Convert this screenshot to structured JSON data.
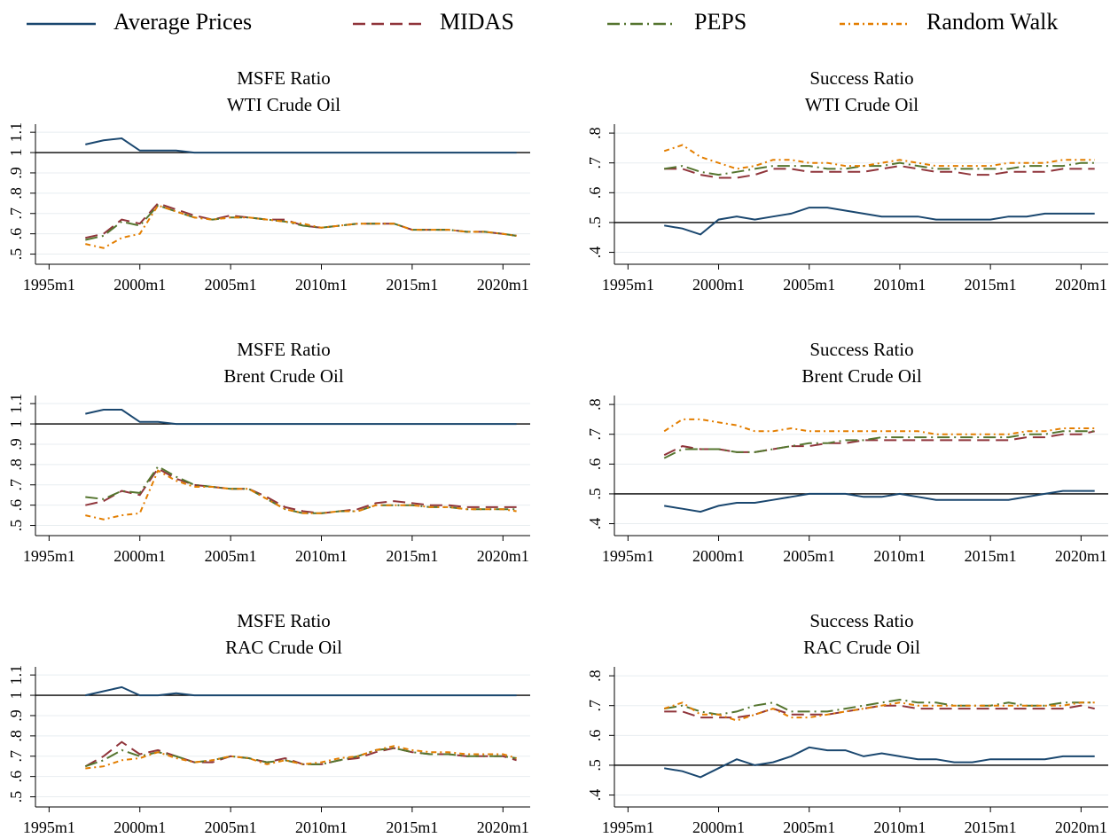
{
  "legend": [
    {
      "name": "Average Prices",
      "color": "#1a476f",
      "dash": "none"
    },
    {
      "name": "MIDAS",
      "color": "#90353b",
      "dash": "14,7"
    },
    {
      "name": "PEPS",
      "color": "#55752f",
      "dash": "14,5,2,5"
    },
    {
      "name": "Random Walk",
      "color": "#e37e00",
      "dash": "6,4,2,4"
    }
  ],
  "chart_data": [
    {
      "type": "line",
      "title": "MSFE Ratio",
      "subtitle": "WTI Crude Oil",
      "refline": 1,
      "x": [
        "1997m1",
        "1998m1",
        "1999m1",
        "2000m1",
        "2001m1",
        "2002m1",
        "2003m1",
        "2004m1",
        "2005m1",
        "2006m1",
        "2007m1",
        "2008m1",
        "2009m1",
        "2010m1",
        "2011m1",
        "2012m1",
        "2013m1",
        "2014m1",
        "2015m1",
        "2016m1",
        "2017m1",
        "2018m1",
        "2019m1",
        "2020m1",
        "2020m10"
      ],
      "xlim": [
        "1994m4",
        "2021m7"
      ],
      "xticks": [
        "1995m1",
        "2000m1",
        "2005m1",
        "2010m1",
        "2015m1",
        "2020m1"
      ],
      "ylim": [
        0.45,
        1.14
      ],
      "yticks": [
        {
          "value": 0.5,
          "label": ".5"
        },
        {
          "value": 0.6,
          "label": ".6"
        },
        {
          "value": 0.7,
          "label": ".7"
        },
        {
          "value": 0.8,
          "label": ".8"
        },
        {
          "value": 0.9,
          "label": ".9"
        },
        1,
        1.1
      ],
      "series": [
        {
          "values": [
            1.04,
            1.06,
            1.07,
            1.01,
            1.01,
            1.01,
            1.0,
            1.0,
            1.0,
            1.0,
            1.0,
            1.0,
            1.0,
            1.0,
            1.0,
            1.0,
            1.0,
            1.0,
            1.0,
            1.0,
            1.0,
            1.0,
            1.0,
            1.0,
            1.0
          ]
        },
        {
          "values": [
            0.58,
            0.6,
            0.67,
            0.65,
            0.75,
            0.72,
            0.69,
            0.67,
            0.69,
            0.68,
            0.67,
            0.67,
            0.64,
            0.63,
            0.64,
            0.65,
            0.65,
            0.65,
            0.62,
            0.62,
            0.62,
            0.61,
            0.61,
            0.6,
            0.59
          ]
        },
        {
          "values": [
            0.57,
            0.59,
            0.66,
            0.64,
            0.74,
            0.71,
            0.68,
            0.67,
            0.68,
            0.68,
            0.67,
            0.66,
            0.64,
            0.63,
            0.64,
            0.65,
            0.65,
            0.65,
            0.62,
            0.62,
            0.62,
            0.61,
            0.61,
            0.6,
            0.59
          ]
        },
        {
          "values": [
            0.55,
            0.53,
            0.58,
            0.6,
            0.74,
            0.71,
            0.68,
            0.67,
            0.68,
            0.68,
            0.67,
            0.66,
            0.65,
            0.63,
            0.64,
            0.65,
            0.65,
            0.65,
            0.62,
            0.62,
            0.62,
            0.61,
            0.61,
            0.6,
            0.59
          ]
        }
      ]
    },
    {
      "type": "line",
      "title": "Success Ratio",
      "subtitle": "WTI Crude Oil",
      "refline": 0.5,
      "x": [
        "1997m1",
        "1998m1",
        "1999m1",
        "2000m1",
        "2001m1",
        "2002m1",
        "2003m1",
        "2004m1",
        "2005m1",
        "2006m1",
        "2007m1",
        "2008m1",
        "2009m1",
        "2010m1",
        "2011m1",
        "2012m1",
        "2013m1",
        "2014m1",
        "2015m1",
        "2016m1",
        "2017m1",
        "2018m1",
        "2019m1",
        "2020m1",
        "2020m10"
      ],
      "xlim": [
        "1994m4",
        "2021m7"
      ],
      "xticks": [
        "1995m1",
        "2000m1",
        "2005m1",
        "2010m1",
        "2015m1",
        "2020m1"
      ],
      "ylim": [
        0.36,
        0.83
      ],
      "yticks": [
        {
          "value": 0.4,
          "label": ".4"
        },
        {
          "value": 0.5,
          "label": ".5"
        },
        {
          "value": 0.6,
          "label": ".6"
        },
        {
          "value": 0.7,
          "label": ".7"
        },
        {
          "value": 0.8,
          "label": ".8"
        }
      ],
      "series": [
        {
          "values": [
            0.49,
            0.48,
            0.46,
            0.51,
            0.52,
            0.51,
            0.52,
            0.53,
            0.55,
            0.55,
            0.54,
            0.53,
            0.52,
            0.52,
            0.52,
            0.51,
            0.51,
            0.51,
            0.51,
            0.52,
            0.52,
            0.53,
            0.53,
            0.53,
            0.53
          ]
        },
        {
          "values": [
            0.68,
            0.68,
            0.66,
            0.65,
            0.65,
            0.66,
            0.68,
            0.68,
            0.67,
            0.67,
            0.67,
            0.67,
            0.68,
            0.69,
            0.68,
            0.67,
            0.67,
            0.66,
            0.66,
            0.67,
            0.67,
            0.67,
            0.68,
            0.68,
            0.68
          ]
        },
        {
          "values": [
            0.68,
            0.69,
            0.67,
            0.66,
            0.67,
            0.68,
            0.69,
            0.69,
            0.69,
            0.68,
            0.68,
            0.69,
            0.69,
            0.7,
            0.69,
            0.68,
            0.68,
            0.68,
            0.68,
            0.68,
            0.69,
            0.69,
            0.69,
            0.7,
            0.7
          ]
        },
        {
          "values": [
            0.74,
            0.76,
            0.72,
            0.7,
            0.68,
            0.69,
            0.71,
            0.71,
            0.7,
            0.7,
            0.69,
            0.69,
            0.7,
            0.71,
            0.7,
            0.69,
            0.69,
            0.69,
            0.69,
            0.7,
            0.7,
            0.7,
            0.71,
            0.71,
            0.71
          ]
        }
      ]
    },
    {
      "type": "line",
      "title": "MSFE Ratio",
      "subtitle": "Brent Crude Oil",
      "refline": 1,
      "x": [
        "1997m1",
        "1998m1",
        "1999m1",
        "2000m1",
        "2001m1",
        "2002m1",
        "2003m1",
        "2004m1",
        "2005m1",
        "2006m1",
        "2007m1",
        "2008m1",
        "2009m1",
        "2010m1",
        "2011m1",
        "2012m1",
        "2013m1",
        "2014m1",
        "2015m1",
        "2016m1",
        "2017m1",
        "2018m1",
        "2019m1",
        "2020m1",
        "2020m10"
      ],
      "xlim": [
        "1994m4",
        "2021m7"
      ],
      "xticks": [
        "1995m1",
        "2000m1",
        "2005m1",
        "2010m1",
        "2015m1",
        "2020m1"
      ],
      "ylim": [
        0.45,
        1.14
      ],
      "yticks": [
        {
          "value": 0.5,
          "label": ".5"
        },
        {
          "value": 0.6,
          "label": ".6"
        },
        {
          "value": 0.7,
          "label": ".7"
        },
        {
          "value": 0.8,
          "label": ".8"
        },
        {
          "value": 0.9,
          "label": ".9"
        },
        1,
        1.1
      ],
      "series": [
        {
          "values": [
            1.05,
            1.07,
            1.07,
            1.01,
            1.01,
            1.0,
            1.0,
            1.0,
            1.0,
            1.0,
            1.0,
            1.0,
            1.0,
            1.0,
            1.0,
            1.0,
            1.0,
            1.0,
            1.0,
            1.0,
            1.0,
            1.0,
            1.0,
            1.0,
            1.0
          ]
        },
        {
          "values": [
            0.6,
            0.62,
            0.67,
            0.65,
            0.78,
            0.73,
            0.7,
            0.69,
            0.68,
            0.68,
            0.64,
            0.59,
            0.57,
            0.56,
            0.57,
            0.58,
            0.61,
            0.62,
            0.61,
            0.6,
            0.6,
            0.59,
            0.59,
            0.59,
            0.59
          ]
        },
        {
          "values": [
            0.64,
            0.63,
            0.67,
            0.66,
            0.79,
            0.74,
            0.7,
            0.69,
            0.68,
            0.68,
            0.63,
            0.58,
            0.56,
            0.56,
            0.57,
            0.57,
            0.6,
            0.6,
            0.6,
            0.59,
            0.59,
            0.58,
            0.58,
            0.58,
            0.58
          ]
        },
        {
          "values": [
            0.55,
            0.53,
            0.55,
            0.56,
            0.77,
            0.72,
            0.69,
            0.69,
            0.68,
            0.68,
            0.63,
            0.58,
            0.56,
            0.56,
            0.57,
            0.57,
            0.6,
            0.6,
            0.6,
            0.59,
            0.59,
            0.58,
            0.58,
            0.58,
            0.57
          ]
        }
      ]
    },
    {
      "type": "line",
      "title": "Success Ratio",
      "subtitle": "Brent Crude Oil",
      "refline": 0.5,
      "x": [
        "1997m1",
        "1998m1",
        "1999m1",
        "2000m1",
        "2001m1",
        "2002m1",
        "2003m1",
        "2004m1",
        "2005m1",
        "2006m1",
        "2007m1",
        "2008m1",
        "2009m1",
        "2010m1",
        "2011m1",
        "2012m1",
        "2013m1",
        "2014m1",
        "2015m1",
        "2016m1",
        "2017m1",
        "2018m1",
        "2019m1",
        "2020m1",
        "2020m10"
      ],
      "xlim": [
        "1994m4",
        "2021m7"
      ],
      "xticks": [
        "1995m1",
        "2000m1",
        "2005m1",
        "2010m1",
        "2015m1",
        "2020m1"
      ],
      "ylim": [
        0.36,
        0.83
      ],
      "yticks": [
        {
          "value": 0.4,
          "label": ".4"
        },
        {
          "value": 0.5,
          "label": ".5"
        },
        {
          "value": 0.6,
          "label": ".6"
        },
        {
          "value": 0.7,
          "label": ".7"
        },
        {
          "value": 0.8,
          "label": ".8"
        }
      ],
      "series": [
        {
          "values": [
            0.46,
            0.45,
            0.44,
            0.46,
            0.47,
            0.47,
            0.48,
            0.49,
            0.5,
            0.5,
            0.5,
            0.49,
            0.49,
            0.5,
            0.49,
            0.48,
            0.48,
            0.48,
            0.48,
            0.48,
            0.49,
            0.5,
            0.51,
            0.51,
            0.51
          ]
        },
        {
          "values": [
            0.63,
            0.66,
            0.65,
            0.65,
            0.64,
            0.64,
            0.65,
            0.66,
            0.66,
            0.67,
            0.67,
            0.68,
            0.68,
            0.68,
            0.68,
            0.68,
            0.68,
            0.68,
            0.68,
            0.68,
            0.69,
            0.69,
            0.7,
            0.7,
            0.71
          ]
        },
        {
          "values": [
            0.62,
            0.65,
            0.65,
            0.65,
            0.64,
            0.64,
            0.65,
            0.66,
            0.67,
            0.67,
            0.68,
            0.68,
            0.69,
            0.69,
            0.69,
            0.69,
            0.69,
            0.69,
            0.69,
            0.69,
            0.7,
            0.7,
            0.71,
            0.71,
            0.71
          ]
        },
        {
          "values": [
            0.71,
            0.75,
            0.75,
            0.74,
            0.73,
            0.71,
            0.71,
            0.72,
            0.71,
            0.71,
            0.71,
            0.71,
            0.71,
            0.71,
            0.71,
            0.7,
            0.7,
            0.7,
            0.7,
            0.7,
            0.71,
            0.71,
            0.72,
            0.72,
            0.72
          ]
        }
      ]
    },
    {
      "type": "line",
      "title": "MSFE Ratio",
      "subtitle": "RAC Crude Oil",
      "refline": 1,
      "x": [
        "1997m1",
        "1998m1",
        "1999m1",
        "2000m1",
        "2001m1",
        "2002m1",
        "2003m1",
        "2004m1",
        "2005m1",
        "2006m1",
        "2007m1",
        "2008m1",
        "2009m1",
        "2010m1",
        "2011m1",
        "2012m1",
        "2013m1",
        "2014m1",
        "2015m1",
        "2016m1",
        "2017m1",
        "2018m1",
        "2019m1",
        "2020m1",
        "2020m10"
      ],
      "xlim": [
        "1994m4",
        "2021m7"
      ],
      "xticks": [
        "1995m1",
        "2000m1",
        "2005m1",
        "2010m1",
        "2015m1",
        "2020m1"
      ],
      "ylim": [
        0.45,
        1.14
      ],
      "yticks": [
        {
          "value": 0.5,
          "label": ".5"
        },
        {
          "value": 0.6,
          "label": ".6"
        },
        {
          "value": 0.7,
          "label": ".7"
        },
        {
          "value": 0.8,
          "label": ".8"
        },
        {
          "value": 0.9,
          "label": ".9"
        },
        1,
        1.1
      ],
      "series": [
        {
          "values": [
            1.0,
            1.02,
            1.04,
            1.0,
            1.0,
            1.01,
            1.0,
            1.0,
            1.0,
            1.0,
            1.0,
            1.0,
            1.0,
            1.0,
            1.0,
            1.0,
            1.0,
            1.0,
            1.0,
            1.0,
            1.0,
            1.0,
            1.0,
            1.0,
            1.0
          ]
        },
        {
          "values": [
            0.65,
            0.7,
            0.77,
            0.71,
            0.73,
            0.7,
            0.67,
            0.67,
            0.7,
            0.69,
            0.67,
            0.69,
            0.66,
            0.66,
            0.68,
            0.69,
            0.72,
            0.74,
            0.72,
            0.71,
            0.71,
            0.7,
            0.7,
            0.7,
            0.68
          ]
        },
        {
          "values": [
            0.65,
            0.68,
            0.73,
            0.7,
            0.72,
            0.7,
            0.67,
            0.68,
            0.7,
            0.69,
            0.67,
            0.68,
            0.66,
            0.66,
            0.68,
            0.7,
            0.73,
            0.74,
            0.72,
            0.71,
            0.71,
            0.7,
            0.7,
            0.7,
            0.69
          ]
        },
        {
          "values": [
            0.64,
            0.65,
            0.68,
            0.69,
            0.72,
            0.69,
            0.67,
            0.68,
            0.7,
            0.69,
            0.66,
            0.68,
            0.66,
            0.67,
            0.69,
            0.7,
            0.73,
            0.75,
            0.73,
            0.72,
            0.72,
            0.71,
            0.71,
            0.71,
            0.69
          ]
        }
      ]
    },
    {
      "type": "line",
      "title": "Success Ratio",
      "subtitle": "RAC Crude Oil",
      "refline": 0.5,
      "x": [
        "1997m1",
        "1998m1",
        "1999m1",
        "2000m1",
        "2001m1",
        "2002m1",
        "2003m1",
        "2004m1",
        "2005m1",
        "2006m1",
        "2007m1",
        "2008m1",
        "2009m1",
        "2010m1",
        "2011m1",
        "2012m1",
        "2013m1",
        "2014m1",
        "2015m1",
        "2016m1",
        "2017m1",
        "2018m1",
        "2019m1",
        "2020m1",
        "2020m10"
      ],
      "xlim": [
        "1994m4",
        "2021m7"
      ],
      "xticks": [
        "1995m1",
        "2000m1",
        "2005m1",
        "2010m1",
        "2015m1",
        "2020m1"
      ],
      "ylim": [
        0.36,
        0.83
      ],
      "yticks": [
        {
          "value": 0.4,
          "label": ".4"
        },
        {
          "value": 0.5,
          "label": ".5"
        },
        {
          "value": 0.6,
          "label": ".6"
        },
        {
          "value": 0.7,
          "label": ".7"
        },
        {
          "value": 0.8,
          "label": ".8"
        }
      ],
      "series": [
        {
          "values": [
            0.49,
            0.48,
            0.46,
            0.49,
            0.52,
            0.5,
            0.51,
            0.53,
            0.56,
            0.55,
            0.55,
            0.53,
            0.54,
            0.53,
            0.52,
            0.52,
            0.51,
            0.51,
            0.52,
            0.52,
            0.52,
            0.52,
            0.53,
            0.53,
            0.53
          ]
        },
        {
          "values": [
            0.68,
            0.68,
            0.66,
            0.66,
            0.66,
            0.67,
            0.69,
            0.67,
            0.67,
            0.67,
            0.68,
            0.69,
            0.7,
            0.7,
            0.69,
            0.69,
            0.69,
            0.69,
            0.69,
            0.69,
            0.69,
            0.69,
            0.69,
            0.7,
            0.69
          ]
        },
        {
          "values": [
            0.69,
            0.7,
            0.68,
            0.67,
            0.68,
            0.7,
            0.71,
            0.68,
            0.68,
            0.68,
            0.69,
            0.7,
            0.71,
            0.72,
            0.71,
            0.71,
            0.7,
            0.7,
            0.7,
            0.71,
            0.7,
            0.7,
            0.71,
            0.71,
            0.71
          ]
        },
        {
          "values": [
            0.69,
            0.71,
            0.67,
            0.67,
            0.65,
            0.67,
            0.69,
            0.66,
            0.66,
            0.67,
            0.68,
            0.69,
            0.7,
            0.71,
            0.7,
            0.7,
            0.7,
            0.7,
            0.7,
            0.7,
            0.7,
            0.7,
            0.7,
            0.71,
            0.71
          ]
        }
      ]
    }
  ]
}
